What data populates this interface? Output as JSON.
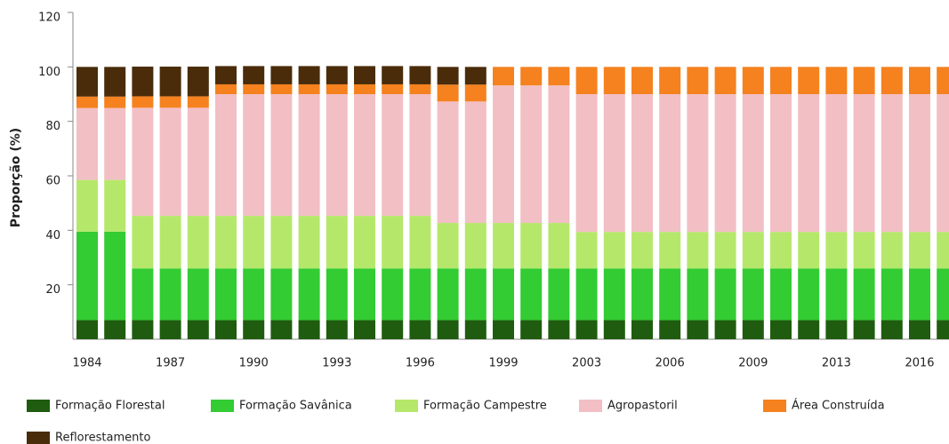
{
  "chart_data": {
    "type": "stacked-bar",
    "y_label": "Proporção (%)",
    "categories": [
      "1984",
      null,
      null,
      "1987",
      null,
      null,
      "1990",
      null,
      null,
      "1993",
      null,
      null,
      "1996",
      null,
      null,
      "1999",
      null,
      null,
      "2003",
      null,
      null,
      "2006",
      null,
      null,
      "2009",
      null,
      null,
      "2013",
      null,
      null,
      "2016",
      null
    ],
    "ylim": [
      0,
      120
    ],
    "yticks": [
      20,
      40,
      60,
      80,
      100,
      120
    ],
    "legend": "bottom",
    "series": [
      {
        "name": "Formação Florestal",
        "color": "#1f5c0f",
        "values": [
          7,
          7,
          7,
          7,
          7,
          7,
          7,
          7,
          7,
          7,
          7,
          7,
          7,
          7,
          7,
          7,
          7,
          7,
          7,
          7,
          7,
          7,
          7,
          7,
          7,
          7,
          7,
          7,
          7,
          7,
          7,
          7
        ]
      },
      {
        "name": "Formação Savânica",
        "color": "#33cc33",
        "values": [
          32.5,
          32.5,
          19,
          19,
          19,
          19,
          19,
          19,
          19,
          19,
          19,
          19,
          19,
          19,
          19,
          19,
          19,
          19,
          19,
          19,
          19,
          19,
          19,
          19,
          19,
          19,
          19,
          19,
          19,
          19,
          19,
          19
        ]
      },
      {
        "name": "Formação Campestre",
        "color": "#b5e86a",
        "values": [
          19,
          19,
          19.3,
          19.3,
          19.3,
          19.3,
          19.3,
          19.3,
          19.3,
          19.3,
          19.3,
          19.3,
          19.3,
          16.7,
          16.7,
          16.7,
          16.7,
          16.7,
          13.4,
          13.4,
          13.4,
          13.4,
          13.4,
          13.4,
          13.4,
          13.4,
          13.4,
          13.4,
          13.4,
          13.4,
          13.4,
          13.4
        ]
      },
      {
        "name": "Agropastoril",
        "color": "#f2bfc4",
        "values": [
          26.4,
          26.4,
          39.7,
          39.7,
          39.7,
          44.7,
          44.7,
          44.7,
          44.7,
          44.7,
          44.7,
          44.7,
          44.7,
          44.6,
          44.6,
          50.5,
          50.5,
          50.5,
          50.6,
          50.6,
          50.6,
          50.6,
          50.6,
          50.6,
          50.6,
          50.6,
          50.6,
          50.6,
          50.6,
          50.6,
          50.6,
          50.6
        ]
      },
      {
        "name": "Área Construída",
        "color": "#f5821f",
        "values": [
          4.2,
          4.2,
          4.2,
          4.2,
          4.2,
          3.6,
          3.6,
          3.6,
          3.6,
          3.6,
          3.6,
          3.6,
          3.6,
          6.2,
          6.2,
          6.8,
          6.8,
          6.8,
          10,
          10,
          10,
          10,
          10,
          10,
          10,
          10,
          10,
          10,
          10,
          10,
          10,
          10
        ]
      },
      {
        "name": "Reflorestamento",
        "color": "#4a2c0a",
        "values": [
          10.9,
          10.9,
          10.9,
          10.9,
          10.9,
          6.7,
          6.7,
          6.7,
          6.7,
          6.7,
          6.7,
          6.7,
          6.7,
          6.5,
          6.5,
          0,
          0,
          0,
          0,
          0,
          0,
          0,
          0,
          0,
          0,
          0,
          0,
          0,
          0,
          0,
          0,
          0
        ]
      }
    ]
  }
}
